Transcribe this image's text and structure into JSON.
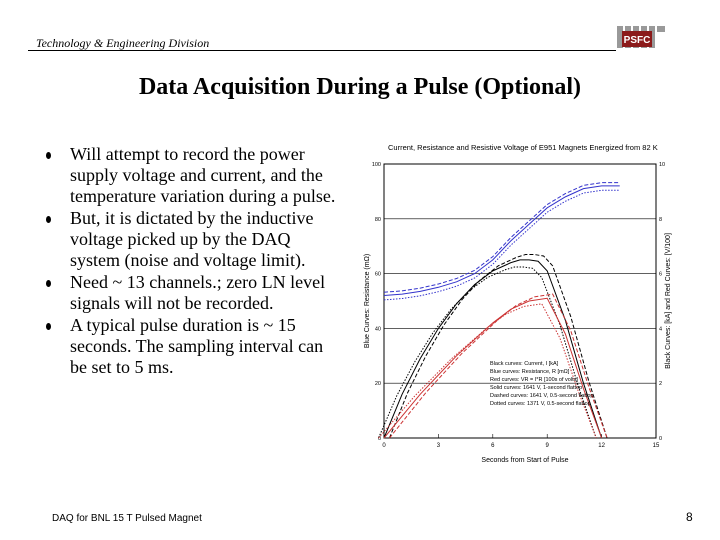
{
  "header": {
    "division": "Technology & Engineering Division",
    "logo_text": "PSFC"
  },
  "title": "Data Acquisition During a Pulse (Optional)",
  "bullets": [
    "Will attempt to record the power supply voltage and current, and the temperature variation during a pulse.",
    "But, it is dictated by the inductive voltage picked up by the DAQ system (noise and voltage limit).",
    "Need ~ 13 channels.; zero LN level signals will not be recorded.",
    "A typical pulse duration is ~ 15 seconds.  The sampling interval can be set to 5 ms."
  ],
  "chart_data": {
    "type": "line",
    "title": "Current, Resistance and Resistive Voltage of E951 Magnets Energized from 82 K",
    "xlabel": "Seconds from Start of Pulse",
    "ylabel_left": "Blue Curves: Resistance (mΩ)",
    "ylabel_right": "Black Curves: [kA] and Red Curves: [V/100]",
    "xlim": [
      0,
      15
    ],
    "ylim_left": [
      0,
      100
    ],
    "ylim_right": [
      0,
      10
    ],
    "x_ticks": [
      "0",
      "3",
      "6",
      "9",
      "12",
      "15"
    ],
    "y_ticks_left": [
      "0",
      "20",
      "40",
      "60",
      "80",
      "100"
    ],
    "y_ticks_right": [
      "0",
      "2",
      "4",
      "6",
      "8",
      "10"
    ],
    "legend": [
      "Black curves: Current, I [kA]",
      "Blue curves: Resistance, R [mΩ]",
      "Red curves: VR = I*R [100s of volts]",
      "Solid curves: 1641 V, 1-second flattop",
      "Dashed curves: 1641 V, 0.5-second flattop",
      "Dotted curves: 1371 V, 0.5-second flattop"
    ],
    "series": [
      {
        "name": "Black curves: Current, I [kA]",
        "color": "#000000",
        "x": [
          0,
          1,
          2,
          3,
          4,
          5,
          6,
          7,
          7.5,
          8,
          8.5,
          9,
          10,
          11,
          12
        ],
        "y": [
          0,
          1.6,
          2.9,
          4.0,
          4.9,
          5.6,
          6.1,
          6.4,
          6.5,
          6.5,
          6.45,
          6.1,
          4.3,
          2.0,
          0
        ]
      },
      {
        "name": "Blue curves: Resistance, R [mΩ]",
        "color": "#3333cc",
        "x": [
          0,
          1,
          2,
          3,
          4,
          5,
          6,
          7,
          8,
          9,
          10,
          11,
          12,
          13
        ],
        "y": [
          52,
          52.5,
          53.5,
          55,
          57,
          60,
          65,
          72,
          78,
          84,
          88,
          91,
          92,
          92
        ]
      },
      {
        "name": "Red curves: VR = I*R [100s of volts]",
        "color": "#cc3333",
        "x": [
          0,
          1,
          2,
          3,
          4,
          5,
          6,
          7,
          8,
          9,
          10,
          11,
          12
        ],
        "y": [
          0,
          0.8,
          1.6,
          2.3,
          3.0,
          3.6,
          4.2,
          4.7,
          5.0,
          5.1,
          3.8,
          1.8,
          0
        ]
      }
    ]
  },
  "footer": {
    "text": "DAQ for BNL 15 T Pulsed Magnet",
    "page": "8"
  }
}
